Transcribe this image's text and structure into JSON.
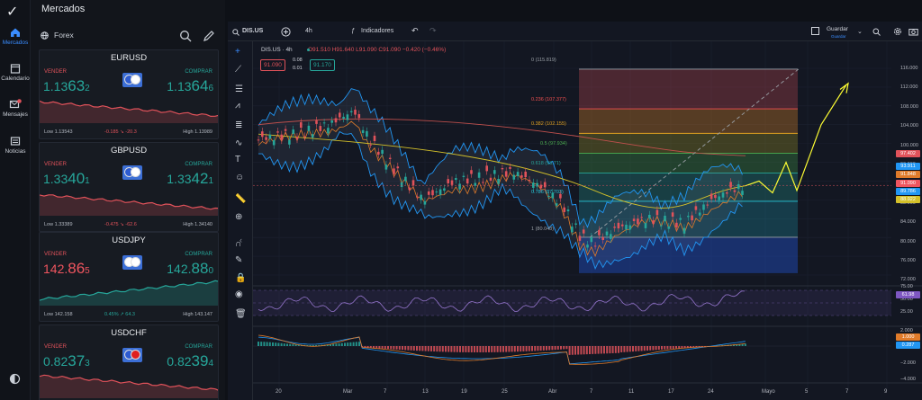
{
  "app": {
    "title": "Mercados",
    "logo": "✓"
  },
  "nav": [
    {
      "label": "Mercados",
      "icon": "home-icon",
      "active": true
    },
    {
      "label": "Calendario",
      "icon": "calendar-icon",
      "active": false
    },
    {
      "label": "Mensajes",
      "icon": "mail-icon",
      "active": false,
      "badge": "9"
    },
    {
      "label": "Noticias",
      "icon": "news-icon",
      "active": false
    }
  ],
  "markets": {
    "category": "Forex",
    "cards": [
      {
        "symbol": "EURUSD",
        "sell_label": "VENDER",
        "buy_label": "COMPRAR",
        "sell_a": "1.13",
        "sell_b": "63",
        "sell_c": "2",
        "buy_a": "1.13",
        "buy_b": "64",
        "buy_c": "6",
        "sell_color": "green",
        "low": "Low 1.13543",
        "change": "-0.185 ↘ -20.3",
        "change_color": "#e0525a",
        "high": "High 1.13989",
        "spark_trend": "down"
      },
      {
        "symbol": "GBPUSD",
        "sell_label": "VENDER",
        "buy_label": "COMPRAR",
        "sell_a": "1.33",
        "sell_b": "40",
        "sell_c": "1",
        "buy_a": "1.33",
        "buy_b": "42",
        "buy_c": "1",
        "sell_color": "green",
        "low": "Low 1.33389",
        "change": "-0.475 ↘ -62.6",
        "change_color": "#e0525a",
        "high": "High 1.34140",
        "spark_trend": "down"
      },
      {
        "symbol": "USDJPY",
        "sell_label": "VENDER",
        "buy_label": "COMPRAR",
        "sell_a": "142.",
        "sell_b": "86",
        "sell_c": "5",
        "buy_a": "142.",
        "buy_b": "88",
        "buy_c": "0",
        "sell_color": "red",
        "low": "Low 142.158",
        "change": "0.45% ↗ 64.3",
        "change_color": "#26a69a",
        "high": "High 143.147",
        "spark_trend": "up"
      },
      {
        "symbol": "USDCHF",
        "sell_label": "VENDER",
        "buy_label": "COMPRAR",
        "sell_a": "0.82",
        "sell_b": "37",
        "sell_c": "3",
        "buy_a": "0.82",
        "buy_b": "39",
        "buy_c": "4",
        "sell_color": "green",
        "low": "",
        "change": "",
        "change_color": "#e0525a",
        "high": "",
        "spark_trend": "down"
      }
    ]
  },
  "toolbar": {
    "symbol": "DIS.US",
    "interval": "4h",
    "indicators": "Indicadores",
    "save": "Guardar",
    "save_sub": "Guardar"
  },
  "legend": {
    "title": "DIS.US · 4h",
    "ohlc": "O91.510 H91.640 L91.090 C91.090 −0.420 (−0.46%)",
    "sell_box": "91.090",
    "spread_top": "0.08",
    "spread_bot": "0.01",
    "buy_box": "91.170"
  },
  "fib": [
    {
      "label": "0 (115.819)",
      "color": "#9aa0a6"
    },
    {
      "label": "0.236 (107.377)",
      "color": "#f05050"
    },
    {
      "label": "0.382 (102.155)",
      "color": "#e0a020"
    },
    {
      "label": "0.5 (97.934)",
      "color": "#4caf50"
    },
    {
      "label": "0.618 (93.71)",
      "color": "#26a69a"
    },
    {
      "label": "0.786 (87.703)",
      "color": "#26c6da"
    },
    {
      "label": "1 (80.048)",
      "color": "#9aa0a6"
    }
  ],
  "yaxis_main": [
    "116.000",
    "112.000",
    "108.000",
    "104.000",
    "100.000",
    "96.000",
    "92.000",
    "88.000",
    "84.000",
    "80.000",
    "76.000",
    "72.000"
  ],
  "price_tags": [
    {
      "text": "97.402",
      "color": "#e0525a"
    },
    {
      "text": "93.911",
      "color": "#2196f3"
    },
    {
      "text": "91.848",
      "color": "#e07b2a"
    },
    {
      "text": "91.090",
      "color": "#f0555f"
    },
    {
      "text": "89.786",
      "color": "#2196f3"
    },
    {
      "text": "88.922",
      "color": "#d4c12a"
    }
  ],
  "rsi": {
    "ticks": [
      "75.00",
      "50.00",
      "25.00"
    ],
    "value": "61.98"
  },
  "macd": {
    "ticks": [
      "2.000",
      "0.000",
      "−2.000",
      "−4.000"
    ],
    "value1": "1.000",
    "value2": "0.287"
  },
  "xaxis": [
    "20",
    "Mar",
    "7",
    "13",
    "19",
    "25",
    "Abr",
    "7",
    "11",
    "17",
    "24",
    "Mayo",
    "5",
    "7",
    "9"
  ]
}
